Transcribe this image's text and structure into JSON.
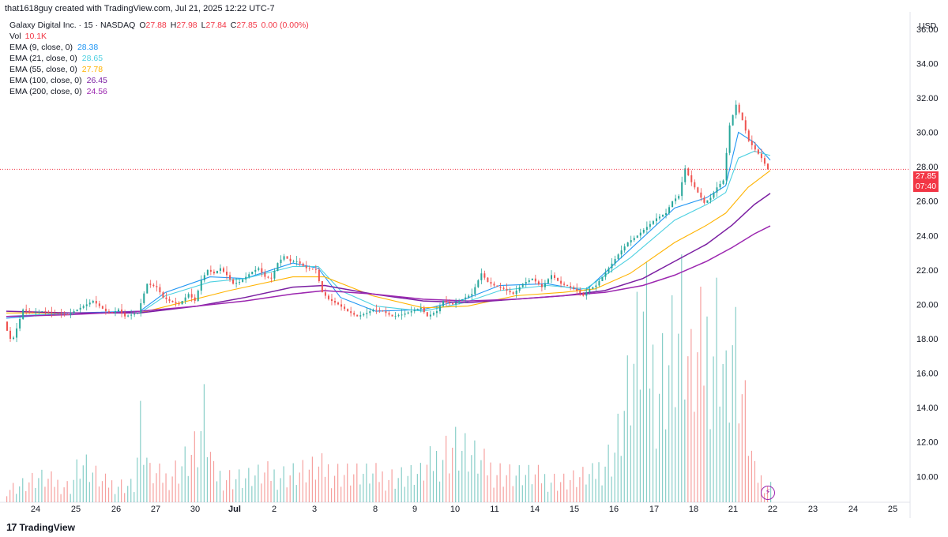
{
  "attribution": "that1618guy created with TradingView.com, Jul 21, 2025 12:22 UTC-7",
  "symbol": {
    "title": "Galaxy Digital Inc. · 15 · NASDAQ",
    "o_label": "O",
    "o": "27.88",
    "h_label": "H",
    "h": "27.98",
    "l_label": "L",
    "l": "27.84",
    "c_label": "C",
    "c": "27.85",
    "change": "0.00 (0.00%)"
  },
  "vol": {
    "label": "Vol",
    "value": "10.1K"
  },
  "emas": [
    {
      "label": "EMA (9, close, 0)",
      "value": "28.38",
      "color": "#2196f3"
    },
    {
      "label": "EMA (21, close, 0)",
      "value": "28.65",
      "color": "#4dd0e1"
    },
    {
      "label": "EMA (55, close, 0)",
      "value": "27.78",
      "color": "#ffb300"
    },
    {
      "label": "EMA (100, close, 0)",
      "value": "26.45",
      "color": "#7b1fa2"
    },
    {
      "label": "EMA (200, close, 0)",
      "value": "24.56",
      "color": "#9c27b0"
    }
  ],
  "currency": "USD",
  "last_price": "27.85",
  "countdown": "07:40",
  "logo_text": "TradingView",
  "colors": {
    "up": "#26a69a",
    "down": "#ef5350"
  },
  "chart_data": {
    "type": "line",
    "y_axis_ticks": [
      "10.00",
      "12.00",
      "14.00",
      "16.00",
      "18.00",
      "20.00",
      "22.00",
      "24.00",
      "26.00",
      "28.00",
      "30.00",
      "32.00",
      "34.00",
      "36.00"
    ],
    "x_axis_ticks": [
      "24",
      "25",
      "26",
      "27",
      "30",
      "Jul",
      "2",
      "3",
      "8",
      "9",
      "10",
      "11",
      "14",
      "15",
      "16",
      "17",
      "18",
      "21",
      "22",
      "23",
      "24",
      "25"
    ],
    "ylim": [
      8.5,
      37
    ],
    "price_path": [
      [
        0,
        19.0
      ],
      [
        3,
        18.2
      ],
      [
        5,
        17.8
      ],
      [
        8,
        18.6
      ],
      [
        12,
        19.7
      ],
      [
        18,
        19.5
      ],
      [
        24,
        19.6
      ],
      [
        30,
        19.5
      ],
      [
        40,
        19.4
      ],
      [
        48,
        19.8
      ],
      [
        56,
        20.2
      ],
      [
        64,
        19.6
      ],
      [
        68,
        19.5
      ],
      [
        72,
        19.7
      ],
      [
        76,
        19.3
      ],
      [
        80,
        19.4
      ],
      [
        84,
        19.5
      ],
      [
        90,
        21.2
      ],
      [
        96,
        21.0
      ],
      [
        100,
        20.4
      ],
      [
        104,
        20.2
      ],
      [
        110,
        20.0
      ],
      [
        116,
        20.6
      ],
      [
        120,
        20.2
      ],
      [
        124,
        21.4
      ],
      [
        128,
        22.0
      ],
      [
        132,
        21.8
      ],
      [
        136,
        22.1
      ],
      [
        140,
        21.7
      ],
      [
        144,
        21.2
      ],
      [
        148,
        21.3
      ],
      [
        152,
        21.6
      ],
      [
        156,
        21.9
      ],
      [
        160,
        22.1
      ],
      [
        164,
        21.6
      ],
      [
        168,
        21.5
      ],
      [
        172,
        22.4
      ],
      [
        176,
        22.8
      ],
      [
        180,
        22.5
      ],
      [
        184,
        22.5
      ],
      [
        190,
        22.1
      ],
      [
        196,
        22.0
      ],
      [
        200,
        20.7
      ],
      [
        204,
        20.3
      ],
      [
        210,
        20.0
      ],
      [
        216,
        19.6
      ],
      [
        222,
        19.3
      ],
      [
        228,
        19.5
      ],
      [
        232,
        19.7
      ],
      [
        238,
        19.6
      ],
      [
        244,
        19.3
      ],
      [
        250,
        19.4
      ],
      [
        256,
        19.6
      ],
      [
        262,
        19.8
      ],
      [
        266,
        19.3
      ],
      [
        272,
        19.6
      ],
      [
        276,
        20.2
      ],
      [
        282,
        20.0
      ],
      [
        288,
        20.3
      ],
      [
        294,
        20.6
      ],
      [
        300,
        21.8
      ],
      [
        304,
        21.3
      ],
      [
        308,
        21.1
      ],
      [
        314,
        20.9
      ],
      [
        320,
        20.6
      ],
      [
        326,
        21.2
      ],
      [
        332,
        21.5
      ],
      [
        338,
        21.0
      ],
      [
        344,
        21.7
      ],
      [
        350,
        21.2
      ],
      [
        356,
        21.0
      ],
      [
        360,
        20.8
      ],
      [
        364,
        20.5
      ],
      [
        368,
        20.9
      ],
      [
        372,
        21.1
      ],
      [
        376,
        21.6
      ],
      [
        380,
        22.1
      ],
      [
        386,
        22.9
      ],
      [
        392,
        23.6
      ],
      [
        398,
        24.0
      ],
      [
        404,
        24.5
      ],
      [
        410,
        25.0
      ],
      [
        416,
        25.3
      ],
      [
        420,
        26.0
      ],
      [
        424,
        26.3
      ],
      [
        428,
        27.9
      ],
      [
        432,
        27.1
      ],
      [
        436,
        26.5
      ],
      [
        440,
        25.9
      ],
      [
        444,
        26.2
      ],
      [
        448,
        26.8
      ],
      [
        452,
        27.2
      ],
      [
        456,
        30.4
      ],
      [
        460,
        31.6
      ],
      [
        464,
        30.7
      ],
      [
        468,
        29.5
      ],
      [
        472,
        29.0
      ],
      [
        476,
        28.5
      ],
      [
        480,
        27.85
      ]
    ],
    "ema_paths": [
      [
        [
          0,
          19.2
        ],
        [
          40,
          19.5
        ],
        [
          84,
          19.6
        ],
        [
          100,
          20.7
        ],
        [
          128,
          21.6
        ],
        [
          150,
          21.5
        ],
        [
          180,
          22.4
        ],
        [
          196,
          22.1
        ],
        [
          210,
          20.4
        ],
        [
          232,
          19.6
        ],
        [
          262,
          19.7
        ],
        [
          288,
          20.3
        ],
        [
          310,
          21.1
        ],
        [
          340,
          21.2
        ],
        [
          364,
          20.8
        ],
        [
          392,
          23.2
        ],
        [
          420,
          25.6
        ],
        [
          440,
          26.2
        ],
        [
          452,
          26.9
        ],
        [
          460,
          30.0
        ],
        [
          470,
          29.4
        ],
        [
          480,
          28.38
        ]
      ],
      [
        [
          0,
          19.3
        ],
        [
          40,
          19.5
        ],
        [
          84,
          19.5
        ],
        [
          100,
          20.5
        ],
        [
          128,
          21.3
        ],
        [
          150,
          21.5
        ],
        [
          180,
          22.2
        ],
        [
          196,
          22.2
        ],
        [
          210,
          20.8
        ],
        [
          232,
          19.9
        ],
        [
          262,
          19.6
        ],
        [
          288,
          20.1
        ],
        [
          310,
          20.8
        ],
        [
          340,
          21.1
        ],
        [
          364,
          20.9
        ],
        [
          392,
          22.7
        ],
        [
          420,
          24.9
        ],
        [
          440,
          25.8
        ],
        [
          452,
          26.5
        ],
        [
          460,
          28.5
        ],
        [
          470,
          28.9
        ],
        [
          480,
          28.65
        ]
      ],
      [
        [
          0,
          19.5
        ],
        [
          40,
          19.5
        ],
        [
          84,
          19.5
        ],
        [
          110,
          20.1
        ],
        [
          140,
          20.8
        ],
        [
          180,
          21.6
        ],
        [
          200,
          21.6
        ],
        [
          230,
          20.5
        ],
        [
          262,
          19.8
        ],
        [
          290,
          19.9
        ],
        [
          320,
          20.5
        ],
        [
          350,
          20.7
        ],
        [
          370,
          20.9
        ],
        [
          392,
          21.8
        ],
        [
          420,
          23.6
        ],
        [
          440,
          24.6
        ],
        [
          452,
          25.3
        ],
        [
          466,
          26.8
        ],
        [
          480,
          27.78
        ]
      ],
      [
        [
          0,
          19.6
        ],
        [
          40,
          19.5
        ],
        [
          84,
          19.5
        ],
        [
          120,
          19.9
        ],
        [
          150,
          20.4
        ],
        [
          180,
          21.0
        ],
        [
          200,
          21.1
        ],
        [
          230,
          20.6
        ],
        [
          262,
          20.2
        ],
        [
          290,
          20.1
        ],
        [
          320,
          20.3
        ],
        [
          350,
          20.5
        ],
        [
          376,
          20.8
        ],
        [
          400,
          21.5
        ],
        [
          420,
          22.5
        ],
        [
          440,
          23.5
        ],
        [
          456,
          24.6
        ],
        [
          470,
          25.8
        ],
        [
          480,
          26.45
        ]
      ],
      [
        [
          0,
          19.3
        ],
        [
          40,
          19.4
        ],
        [
          84,
          19.6
        ],
        [
          120,
          19.9
        ],
        [
          150,
          20.2
        ],
        [
          180,
          20.6
        ],
        [
          200,
          20.8
        ],
        [
          230,
          20.6
        ],
        [
          262,
          20.3
        ],
        [
          290,
          20.2
        ],
        [
          320,
          20.3
        ],
        [
          350,
          20.5
        ],
        [
          376,
          20.7
        ],
        [
          400,
          21.1
        ],
        [
          420,
          21.7
        ],
        [
          440,
          22.5
        ],
        [
          456,
          23.3
        ],
        [
          470,
          24.1
        ],
        [
          480,
          24.56
        ]
      ]
    ],
    "volume": [
      [
        0,
        1.0
      ],
      [
        20,
        1.7
      ],
      [
        40,
        1.2
      ],
      [
        46,
        3.0
      ],
      [
        60,
        1.4
      ],
      [
        80,
        1.3
      ],
      [
        84,
        5.4
      ],
      [
        90,
        2.0
      ],
      [
        100,
        1.8
      ],
      [
        120,
        4.0
      ],
      [
        124,
        6.0
      ],
      [
        130,
        2.0
      ],
      [
        150,
        1.8
      ],
      [
        172,
        2.1
      ],
      [
        200,
        2.4
      ],
      [
        230,
        1.9
      ],
      [
        260,
        2.0
      ],
      [
        280,
        4.4
      ],
      [
        300,
        2.6
      ],
      [
        320,
        2.0
      ],
      [
        350,
        1.6
      ],
      [
        368,
        1.9
      ],
      [
        382,
        4.0
      ],
      [
        400,
        12.6
      ],
      [
        408,
        8.9
      ],
      [
        424,
        13.2
      ],
      [
        430,
        8.8
      ],
      [
        448,
        13.8
      ],
      [
        452,
        8.5
      ],
      [
        456,
        11.8
      ],
      [
        470,
        2.0
      ],
      [
        480,
        1.2
      ]
    ]
  }
}
